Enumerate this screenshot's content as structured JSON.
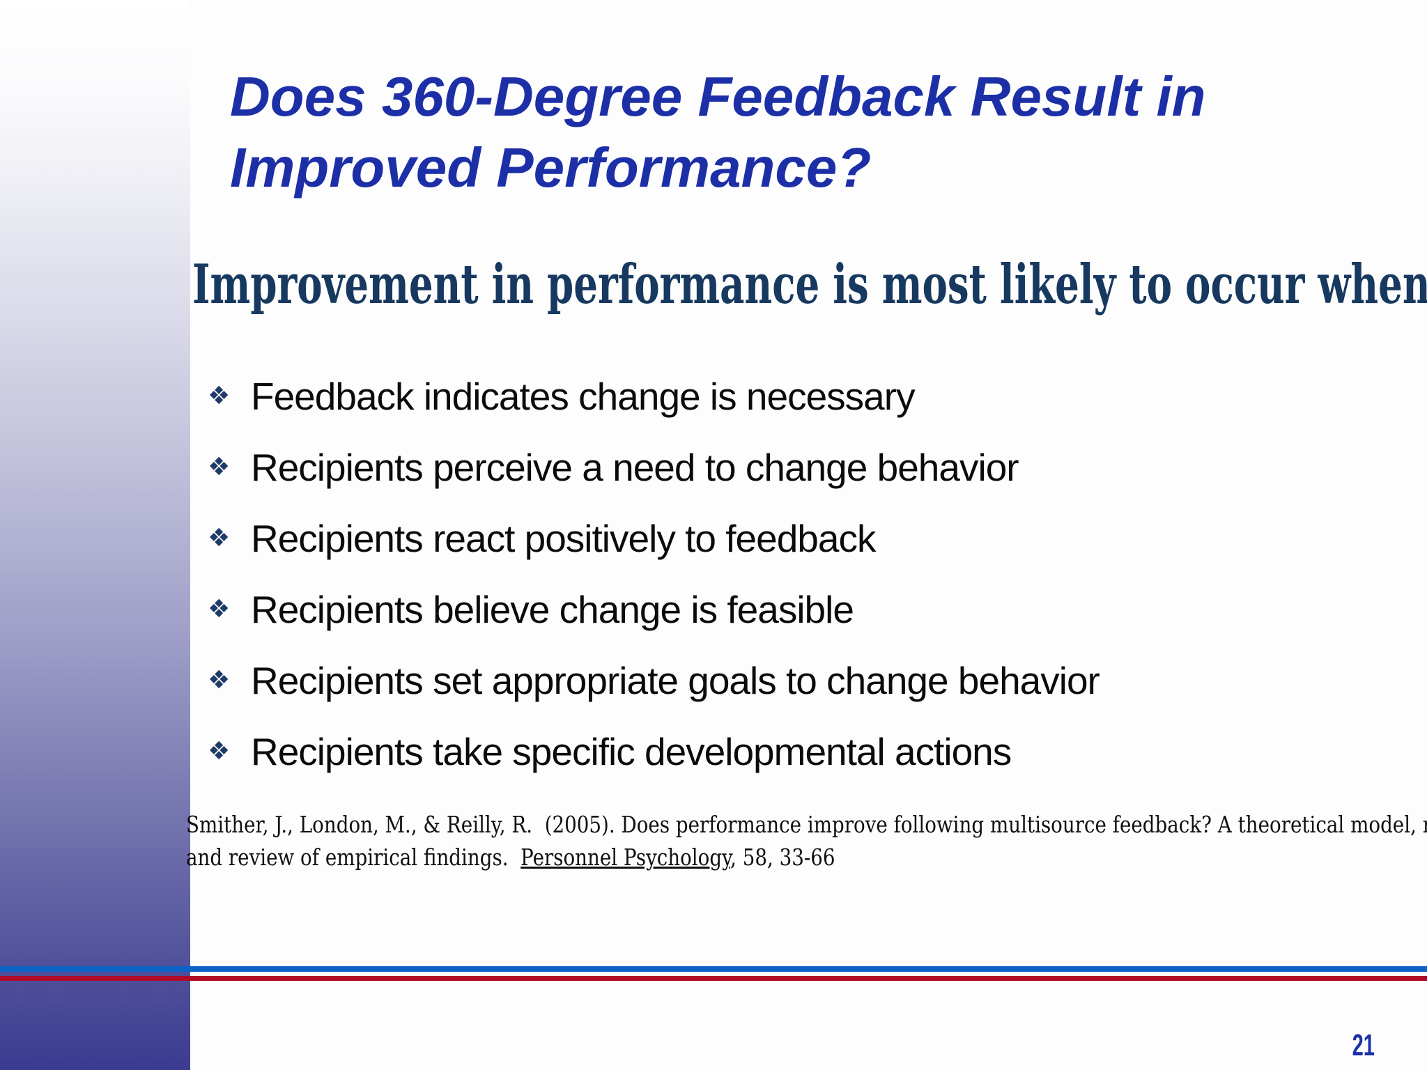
{
  "slide": {
    "title_line1": "Does 360-Degree Feedback Result in",
    "title_line2": "Improved Performance?",
    "subtitle": "Improvement in performance is most likely to occur when:",
    "bullet_glyph": "❖",
    "bullets": [
      "Feedback indicates change is necessary",
      "Recipients perceive a need to change behavior",
      "Recipients react positively to feedback",
      "Recipients believe change is feasible",
      "Recipients set appropriate goals to change behavior",
      "Recipients take specific developmental actions"
    ],
    "citation": {
      "line1": "Smither, J., London, M., & Reilly, R.  (2005). Does performance improve following multisource feedback? A theoretical model, meta-analysis",
      "line2_before": "and review of empirical findings.  ",
      "journal": "Personnel Psychology",
      "line2_after": ", 58, 33-66"
    },
    "page_number": "21",
    "colors": {
      "title_blue": "#1d2fa6",
      "subtitle_navy": "#17395f",
      "bullet_diamond": "#1e3a68",
      "body_text": "#0b0b0b",
      "accent_line_blue": "#0c62c6",
      "accent_line_red": "#b00a26",
      "page_number_blue": "#1c2fa6",
      "sidebar_gradient_top": "#ffffff",
      "sidebar_gradient_bottom": "#3b3b91"
    }
  }
}
